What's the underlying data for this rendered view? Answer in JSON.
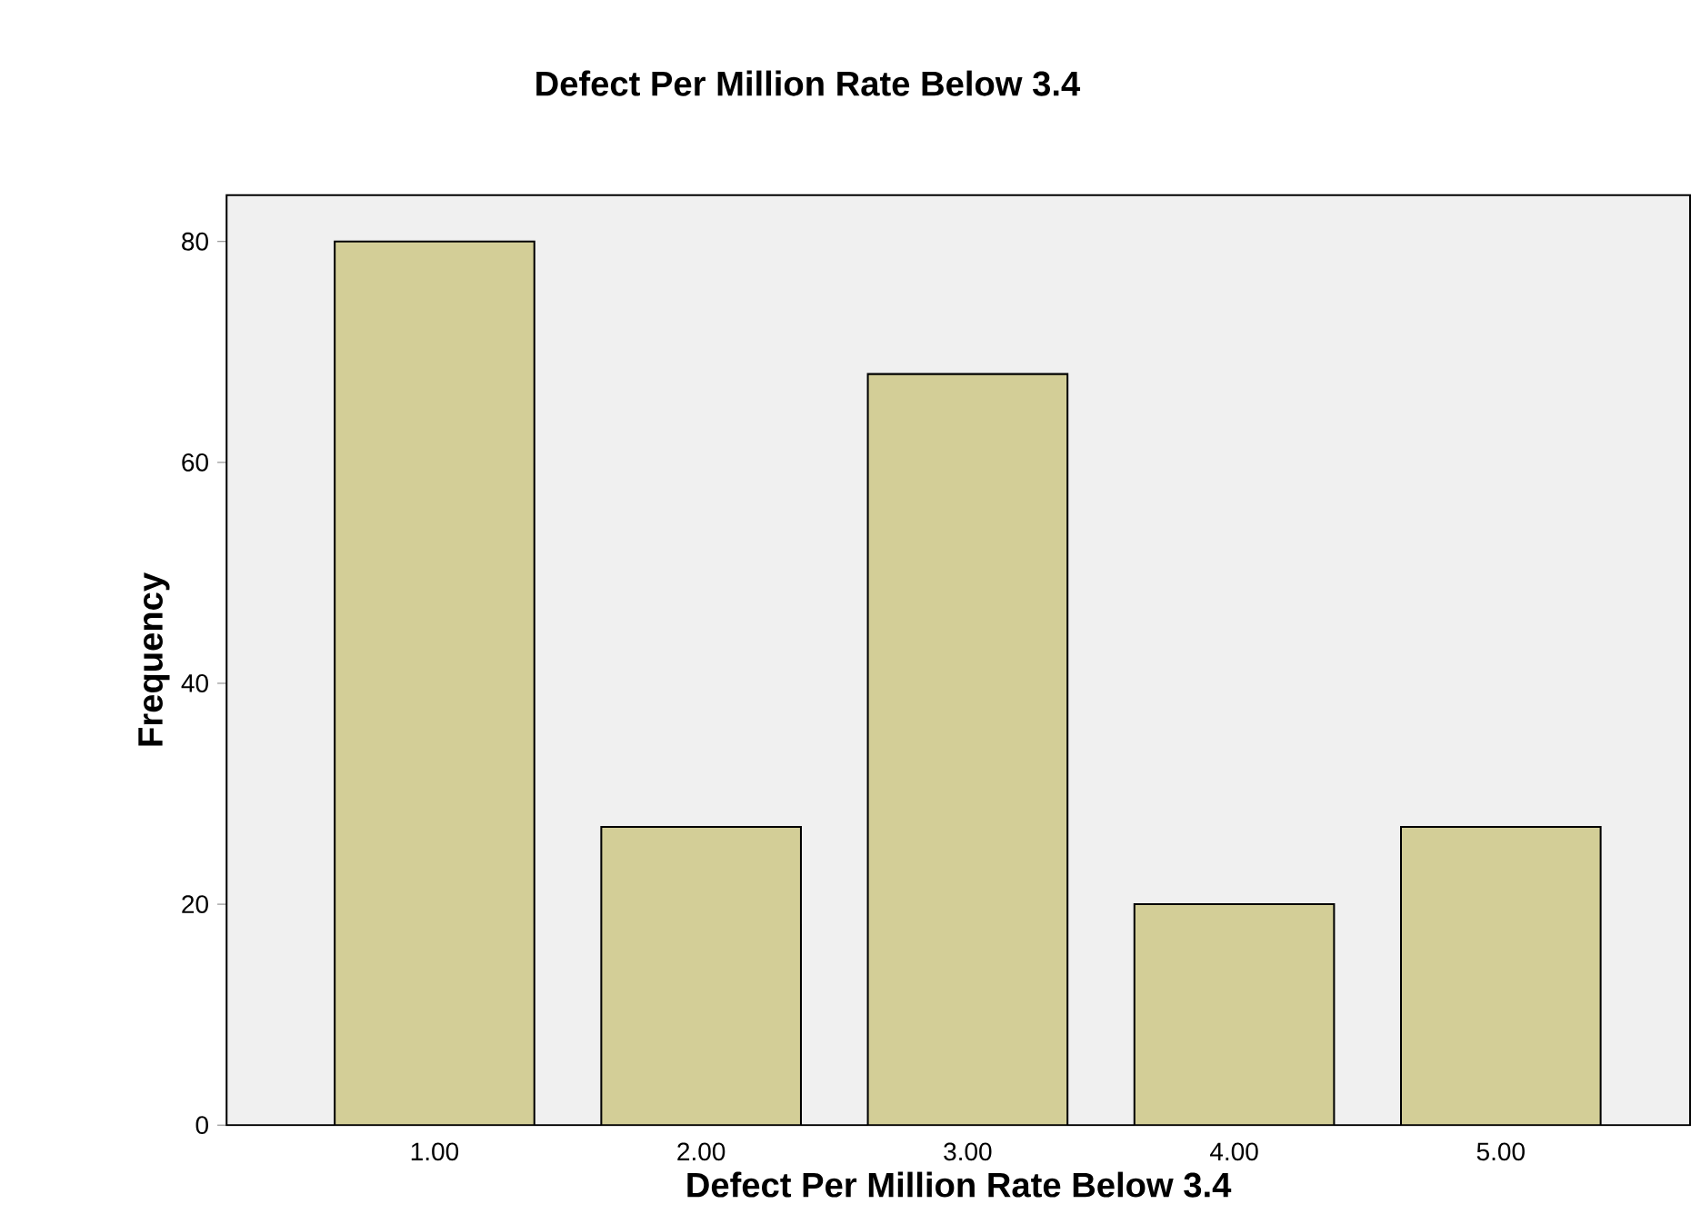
{
  "chart_data": {
    "type": "bar",
    "title": "Defect Per Million Rate Below 3.4",
    "xlabel": "Defect Per Million Rate Below 3.4",
    "ylabel": "Frequency",
    "categories": [
      "1.00",
      "2.00",
      "3.00",
      "4.00",
      "5.00"
    ],
    "values": [
      80,
      27,
      68,
      20,
      27
    ],
    "color": "#d3ce97",
    "ylim": [
      0,
      84.2
    ],
    "yticks": [
      0,
      20,
      40,
      60,
      80
    ]
  }
}
